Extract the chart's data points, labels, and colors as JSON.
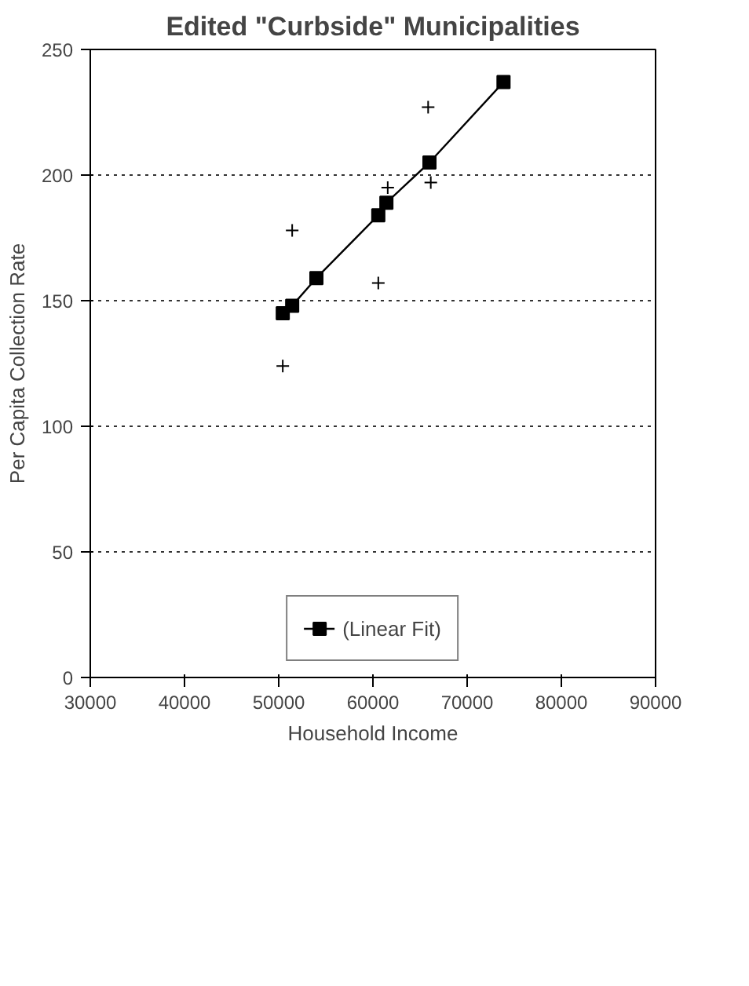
{
  "chart_data": {
    "type": "scatter",
    "title": "Edited \"Curbside\" Municipalities",
    "xlabel": "Household Income",
    "ylabel": "Per Capita Collection Rate",
    "xlim": [
      30000,
      90000
    ],
    "xticks": [
      30000,
      40000,
      50000,
      60000,
      70000,
      80000,
      90000
    ],
    "ylim": [
      0,
      250
    ],
    "yticks": [
      0,
      50,
      100,
      150,
      200,
      250
    ],
    "grid": "y",
    "legend": "bottom",
    "series": [
      {
        "color": "#000000",
        "marker": "cross",
        "x": [
          65860,
          66140,
          61570,
          60570,
          51430,
          50430
        ],
        "values": [
          227,
          197,
          195,
          157,
          178,
          124
        ]
      },
      {
        "type": "line",
        "name": "(Linear Fit)",
        "color": "#000000",
        "marker": "square",
        "line_style": "solid",
        "x": [
          50430,
          51430,
          54000,
          60570,
          61430,
          66000,
          73860
        ],
        "values": [
          145,
          148,
          159,
          184,
          189,
          205,
          237
        ]
      }
    ]
  }
}
